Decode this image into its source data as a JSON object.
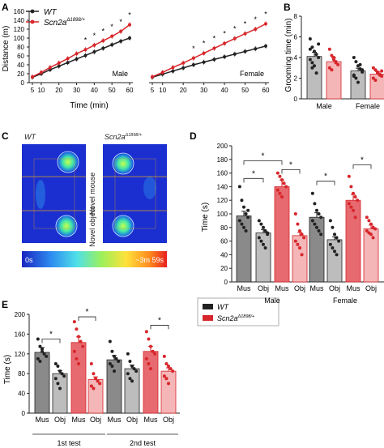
{
  "panels": {
    "A": {
      "letter": "A",
      "ylabel": "Distance (m)",
      "xlabel": "Time (min)",
      "legend": [
        "WT",
        "Scn2a",
        "Δ1898/+"
      ],
      "male_label": "Male",
      "female_label": "Female",
      "star": "*"
    },
    "B": {
      "letter": "B",
      "ylabel": "Grooming time (min)",
      "groups": [
        "Male",
        "Female"
      ]
    },
    "C": {
      "letter": "C",
      "wt": "WT",
      "scn": "Scn2a",
      "scn_sup": "Δ1898/+",
      "novel_mouse": "Novel mouse",
      "novel_object": "Novel object",
      "scale_min": "0s",
      "scale_max": "~3m 59s"
    },
    "D": {
      "letter": "D",
      "ylabel": "Time (s)",
      "groups": [
        "Male",
        "Female"
      ],
      "star": "*"
    },
    "E": {
      "letter": "E",
      "ylabel": "Time (s)",
      "groups": [
        "1st test",
        "2nd test"
      ],
      "legend": [
        "WT",
        "Scn2a",
        "Δ1898/+"
      ],
      "star": "*"
    }
  },
  "colors": {
    "wt": "#222222",
    "mut": "#d7262b",
    "wt_light": "#bdbdbd",
    "mut_light": "#f4b6b7",
    "wt_bar": "#8a8a8a",
    "mut_bar": "#e66a6f"
  },
  "chart_data": [
    {
      "panel": "A",
      "type": "line",
      "xlabel": "Time (min)",
      "ylabel": "Distance (m)",
      "xticks": [
        5,
        10,
        20,
        30,
        40,
        50,
        60
      ],
      "xlim": [
        5,
        60
      ],
      "ylim": [
        0,
        160
      ],
      "yticks": [
        0,
        20,
        40,
        60,
        80,
        100,
        120,
        140,
        160
      ],
      "subplots": [
        {
          "label": "Male",
          "x": [
            5,
            10,
            15,
            20,
            25,
            30,
            35,
            40,
            45,
            50,
            55,
            60
          ],
          "series": [
            {
              "name": "WT",
              "values": [
                12,
                20,
                29,
                37,
                45,
                53,
                61,
                69,
                77,
                85,
                93,
                100
              ]
            },
            {
              "name": "Scn2a Δ1898/+",
              "values": [
                13,
                23,
                34,
                44,
                54,
                65,
                74,
                84,
                94,
                104,
                115,
                130
              ]
            }
          ],
          "sig_x": [
            35,
            40,
            45,
            50,
            55,
            60
          ]
        },
        {
          "label": "Female",
          "x": [
            5,
            10,
            15,
            20,
            25,
            30,
            35,
            40,
            45,
            50,
            55,
            60
          ],
          "series": [
            {
              "name": "WT",
              "values": [
                12,
                19,
                26,
                33,
                40,
                46,
                52,
                58,
                64,
                70,
                76,
                82
              ]
            },
            {
              "name": "Scn2a Δ1898/+",
              "values": [
                13,
                23,
                34,
                44,
                55,
                66,
                77,
                88,
                99,
                110,
                120,
                132
              ]
            }
          ],
          "sig_x": [
            25,
            30,
            35,
            40,
            45,
            50,
            55,
            60
          ]
        }
      ]
    },
    {
      "panel": "B",
      "type": "bar",
      "ylabel": "Grooming time (min)",
      "ylim": [
        0,
        8
      ],
      "yticks": [
        0,
        2,
        4,
        6,
        8
      ],
      "categories": [
        "Male WT",
        "Male Scn2a",
        "Female WT",
        "Female Scn2a"
      ],
      "values": [
        4.1,
        3.6,
        2.7,
        2.4
      ],
      "points": [
        [
          5.8,
          5.0,
          4.6,
          4.3,
          4.0,
          3.8,
          3.5,
          3.2,
          2.5,
          5.3,
          4.8,
          3.0
        ],
        [
          4.8,
          4.2,
          3.8,
          3.5,
          3.3,
          3.0,
          2.8,
          4.0,
          3.6
        ],
        [
          4.0,
          3.6,
          3.2,
          2.9,
          2.6,
          2.3,
          2.0,
          1.6,
          3.3,
          2.8,
          2.2
        ],
        [
          3.0,
          2.8,
          2.6,
          2.4,
          2.2,
          2.0,
          1.8,
          2.5,
          2.3,
          2.7
        ]
      ]
    },
    {
      "panel": "D",
      "type": "bar",
      "ylabel": "Time (s)",
      "ylim": [
        0,
        200
      ],
      "yticks": [
        0,
        20,
        40,
        60,
        80,
        100,
        120,
        140,
        160,
        180,
        200
      ],
      "categories": [
        "Mus",
        "Obj",
        "Mus",
        "Obj",
        "Mus",
        "Obj",
        "Mus",
        "Obj"
      ],
      "values": [
        97,
        72,
        140,
        68,
        95,
        62,
        120,
        78
      ],
      "points": [
        [
          140,
          120,
          110,
          100,
          95,
          90,
          85,
          80,
          75,
          105
        ],
        [
          90,
          85,
          80,
          75,
          70,
          65,
          60,
          55,
          50,
          72
        ],
        [
          160,
          155,
          150,
          145,
          140,
          135,
          130,
          125,
          145
        ],
        [
          100,
          85,
          75,
          70,
          65,
          60,
          55,
          50,
          40
        ],
        [
          130,
          115,
          105,
          100,
          95,
          90,
          85,
          80,
          75,
          70
        ],
        [
          90,
          80,
          70,
          65,
          60,
          55,
          50,
          45,
          40
        ],
        [
          155,
          140,
          130,
          125,
          120,
          115,
          110,
          105,
          95
        ],
        [
          95,
          90,
          85,
          80,
          78,
          75,
          72,
          70,
          65
        ]
      ],
      "comparisons": [
        [
          0,
          1,
          152
        ],
        [
          0,
          2,
          178
        ],
        [
          2,
          3,
          165
        ],
        [
          4,
          5,
          148
        ],
        [
          6,
          7,
          172
        ]
      ]
    },
    {
      "panel": "E",
      "type": "bar",
      "ylabel": "Time (s)",
      "ylim": [
        0,
        200
      ],
      "yticks": [
        0,
        40,
        80,
        120,
        160,
        200
      ],
      "categories": [
        "Mus",
        "Obj",
        "Mus",
        "Obj",
        "Mus",
        "Obj",
        "Mus",
        "Obj"
      ],
      "values": [
        123,
        80,
        143,
        68,
        108,
        90,
        125,
        85
      ],
      "points": [
        [
          150,
          135,
          125,
          120,
          115,
          110,
          105,
          130
        ],
        [
          100,
          95,
          85,
          80,
          75,
          70,
          60,
          50
        ],
        [
          185,
          170,
          155,
          145,
          135,
          125,
          110,
          100
        ],
        [
          100,
          80,
          70,
          65,
          60,
          55,
          50
        ],
        [
          145,
          125,
          115,
          110,
          105,
          100,
          95,
          85
        ],
        [
          120,
          105,
          95,
          90,
          85,
          80,
          70,
          65
        ],
        [
          165,
          150,
          135,
          125,
          120,
          110,
          100,
          90
        ],
        [
          115,
          100,
          95,
          90,
          85,
          75,
          70,
          60
        ]
      ],
      "comparisons": [
        [
          0,
          1,
          150
        ],
        [
          2,
          3,
          195
        ],
        [
          6,
          7,
          178
        ]
      ]
    }
  ]
}
